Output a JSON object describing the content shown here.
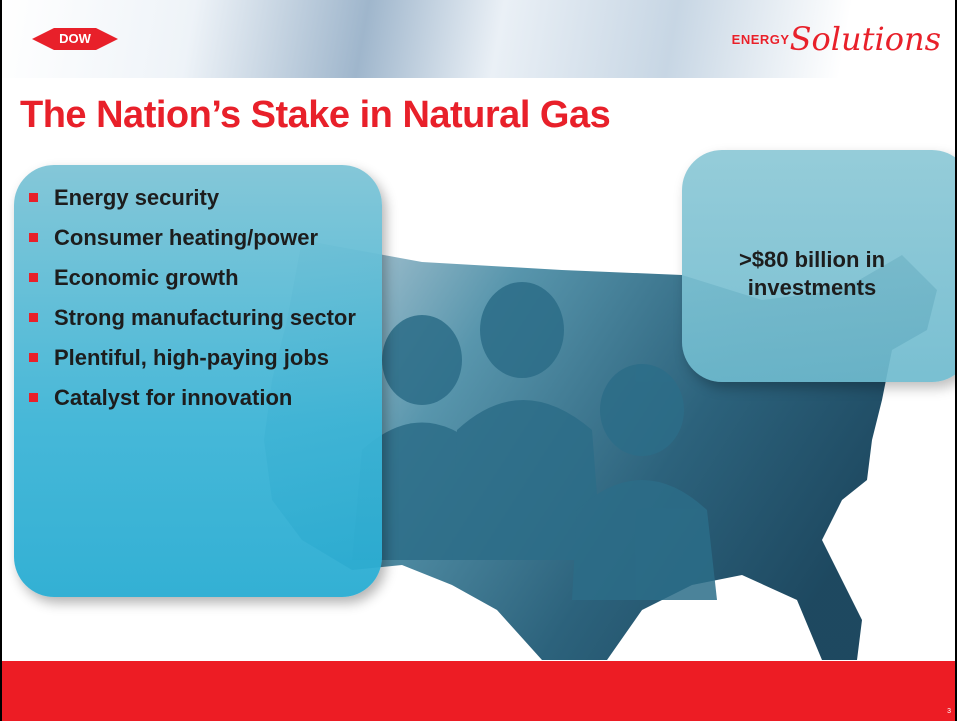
{
  "header": {
    "logo": "DOW",
    "brand_prefix": "ENERGY",
    "brand": "Solutions"
  },
  "title": "The Nation’s Stake in Natural Gas",
  "bullets": [
    "Energy security",
    "Consumer heating/power",
    "Economic growth",
    "Strong manufacturing sector",
    "Plentiful, high-paying jobs",
    "Catalyst for innovation"
  ],
  "callout": ">$80 billion in investments",
  "page_number": "3"
}
